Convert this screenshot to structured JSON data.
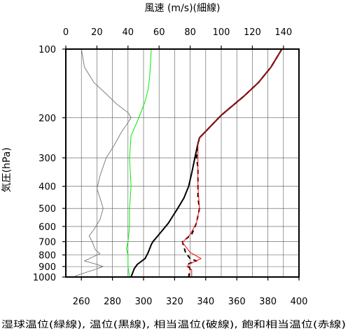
{
  "chart_data": {
    "type": "line",
    "title": "",
    "top_axis_label": "風速 (m/s)(細線)",
    "bottom_axis_label": "湿球温位(緑線), 温位(黒線), 相当温位(破線), 飽和相当温位(赤線)",
    "ylabel": "気圧(hPa)",
    "y_scale": "log",
    "y_reversed": true,
    "ylim": [
      1000,
      100
    ],
    "y_ticks": [
      100,
      200,
      300,
      400,
      500,
      600,
      700,
      800,
      900,
      1000
    ],
    "x_bottom_lim": [
      250,
      400
    ],
    "x_bottom_ticks": [
      260,
      280,
      300,
      320,
      340,
      360,
      380,
      400
    ],
    "x_top_lim": [
      0,
      150
    ],
    "x_top_ticks": [
      0,
      20,
      40,
      60,
      80,
      100,
      120,
      140
    ],
    "grid": true,
    "series": [
      {
        "axis": "top",
        "color": "#808080",
        "style": "solid",
        "width": "thin",
        "points": [
          [
            10,
            100
          ],
          [
            12,
            120
          ],
          [
            18,
            140
          ],
          [
            25,
            155
          ],
          [
            33,
            175
          ],
          [
            40,
            190
          ],
          [
            42,
            200
          ],
          [
            39,
            215
          ],
          [
            36,
            230
          ],
          [
            31,
            265
          ],
          [
            26,
            300
          ],
          [
            22,
            360
          ],
          [
            20,
            410
          ],
          [
            22,
            450
          ],
          [
            24,
            500
          ],
          [
            22,
            560
          ],
          [
            18,
            620
          ],
          [
            15,
            660
          ],
          [
            17,
            700
          ],
          [
            19,
            760
          ],
          [
            22,
            790
          ],
          [
            16,
            825
          ],
          [
            12,
            850
          ],
          [
            20,
            880
          ],
          [
            24,
            900
          ],
          [
            18,
            930
          ],
          [
            12,
            960
          ],
          [
            6,
            990
          ]
        ]
      },
      {
        "axis": "bottom",
        "color": "#00ee00",
        "style": "solid",
        "width": "thin",
        "points": [
          [
            305,
            100
          ],
          [
            304,
            130
          ],
          [
            303,
            150
          ],
          [
            301,
            170
          ],
          [
            297,
            200
          ],
          [
            292,
            240
          ],
          [
            291,
            300
          ],
          [
            292,
            400
          ],
          [
            291,
            500
          ],
          [
            291,
            600
          ],
          [
            290,
            700
          ],
          [
            289,
            750
          ],
          [
            290,
            800
          ],
          [
            290,
            850
          ],
          [
            290,
            900
          ],
          [
            291,
            1000
          ]
        ]
      },
      {
        "axis": "bottom",
        "color": "#000000",
        "style": "solid",
        "width": "thick",
        "points": [
          [
            389,
            100
          ],
          [
            382,
            120
          ],
          [
            374,
            140
          ],
          [
            365,
            160
          ],
          [
            350,
            195
          ],
          [
            336,
            245
          ],
          [
            335,
            260
          ],
          [
            333,
            300
          ],
          [
            331,
            350
          ],
          [
            329,
            400
          ],
          [
            326,
            450
          ],
          [
            322,
            500
          ],
          [
            316,
            580
          ],
          [
            310,
            650
          ],
          [
            306,
            700
          ],
          [
            305,
            720
          ],
          [
            303,
            780
          ],
          [
            301,
            830
          ],
          [
            296,
            880
          ],
          [
            294,
            920
          ],
          [
            292,
            1000
          ]
        ]
      },
      {
        "axis": "bottom",
        "color": "#000000",
        "style": "dashed",
        "width": "thick",
        "points": [
          [
            389,
            100
          ],
          [
            382,
            120
          ],
          [
            374,
            140
          ],
          [
            365,
            160
          ],
          [
            350,
            195
          ],
          [
            336,
            245
          ],
          [
            335,
            260
          ],
          [
            334,
            300
          ],
          [
            335,
            330
          ],
          [
            335,
            400
          ],
          [
            335,
            450
          ],
          [
            336,
            500
          ],
          [
            334,
            580
          ],
          [
            331,
            650
          ],
          [
            325,
            700
          ],
          [
            327,
            780
          ],
          [
            330,
            830
          ],
          [
            334,
            850
          ],
          [
            328,
            880
          ],
          [
            330,
            920
          ],
          [
            329,
            1000
          ]
        ]
      },
      {
        "axis": "bottom",
        "color": "#ff0000",
        "style": "solid",
        "width": "thin",
        "points": [
          [
            389,
            100
          ],
          [
            382,
            120
          ],
          [
            374,
            140
          ],
          [
            365,
            160
          ],
          [
            350,
            195
          ],
          [
            336,
            245
          ],
          [
            335,
            260
          ],
          [
            335,
            300
          ],
          [
            335,
            400
          ],
          [
            336,
            500
          ],
          [
            334,
            580
          ],
          [
            330,
            650
          ],
          [
            325,
            705
          ],
          [
            330,
            780
          ],
          [
            337,
            830
          ],
          [
            329,
            880
          ],
          [
            328,
            900
          ],
          [
            331,
            930
          ],
          [
            331,
            1000
          ]
        ]
      }
    ]
  }
}
